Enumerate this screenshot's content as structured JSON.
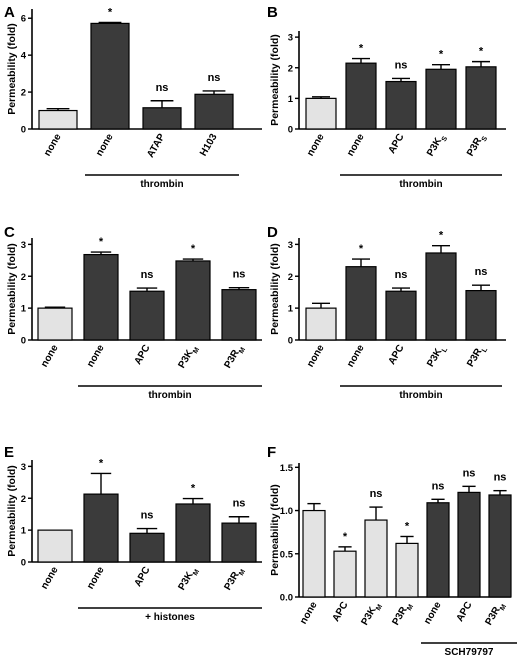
{
  "colors": {
    "light": "#e3e3e3",
    "dark": "#3b3b3b",
    "axis": "#000000"
  },
  "chart_data": [
    {
      "id": "A",
      "type": "bar",
      "ylabel": "Permeability (fold)",
      "ylim": [
        0,
        6.5
      ],
      "yticks": [
        "0",
        "2",
        "4",
        "6"
      ],
      "categories": [
        "none",
        "none",
        "ATAP",
        "H103"
      ],
      "values": [
        1.0,
        5.72,
        1.15,
        1.88
      ],
      "errors": [
        0.1,
        0.05,
        0.38,
        0.18
      ],
      "fills": [
        "light",
        "dark",
        "dark",
        "dark"
      ],
      "significance": [
        "",
        "*",
        "ns",
        "ns"
      ],
      "group_label": "thrombin",
      "group_range": [
        1,
        3
      ]
    },
    {
      "id": "B",
      "type": "bar",
      "ylabel": "Permeability (fold)",
      "ylim": [
        0,
        3.2
      ],
      "yticks": [
        "0",
        "1",
        "2",
        "3"
      ],
      "categories": [
        "none",
        "none",
        "APC",
        "P3K_S",
        "P3R_S"
      ],
      "values": [
        1.0,
        2.15,
        1.55,
        1.95,
        2.03
      ],
      "errors": [
        0.05,
        0.15,
        0.1,
        0.15,
        0.17
      ],
      "fills": [
        "light",
        "dark",
        "dark",
        "dark",
        "dark"
      ],
      "significance": [
        "",
        "*",
        "ns",
        "*",
        "*"
      ],
      "group_label": "thrombin",
      "group_range": [
        1,
        4
      ]
    },
    {
      "id": "C",
      "type": "bar",
      "ylabel": "Permeability (fold)",
      "ylim": [
        0,
        3.2
      ],
      "yticks": [
        "0",
        "1",
        "2",
        "3"
      ],
      "categories": [
        "none",
        "none",
        "APC",
        "P3K_M",
        "P3R_M"
      ],
      "values": [
        1.0,
        2.68,
        1.53,
        2.48,
        1.58
      ],
      "errors": [
        0.03,
        0.08,
        0.1,
        0.06,
        0.06
      ],
      "fills": [
        "light",
        "dark",
        "dark",
        "dark",
        "dark"
      ],
      "significance": [
        "",
        "*",
        "ns",
        "*",
        "ns"
      ],
      "group_label": "thrombin",
      "group_range": [
        1,
        4
      ]
    },
    {
      "id": "D",
      "type": "bar",
      "ylabel": "Permeability (fold)",
      "ylim": [
        0,
        3.2
      ],
      "yticks": [
        "0",
        "1",
        "2",
        "3"
      ],
      "categories": [
        "none",
        "none",
        "APC",
        "P3K_L",
        "P3R_L"
      ],
      "values": [
        1.0,
        2.3,
        1.53,
        2.73,
        1.55
      ],
      "errors": [
        0.15,
        0.24,
        0.1,
        0.23,
        0.17
      ],
      "fills": [
        "light",
        "dark",
        "dark",
        "dark",
        "dark"
      ],
      "significance": [
        "",
        "*",
        "ns",
        "*",
        "ns"
      ],
      "group_label": "thrombin",
      "group_range": [
        1,
        4
      ]
    },
    {
      "id": "E",
      "type": "bar",
      "ylabel": "Permeability (fold)",
      "ylim": [
        0,
        3.2
      ],
      "yticks": [
        "0",
        "1",
        "2",
        "3"
      ],
      "categories": [
        "none",
        "none",
        "APC",
        "P3K_M",
        "P3R_M"
      ],
      "values": [
        1.0,
        2.13,
        0.9,
        1.82,
        1.22
      ],
      "errors": [
        0.0,
        0.65,
        0.15,
        0.17,
        0.2
      ],
      "fills": [
        "light",
        "dark",
        "dark",
        "dark",
        "dark"
      ],
      "significance": [
        "",
        "*",
        "ns",
        "*",
        "ns"
      ],
      "group_label": "+ histones",
      "group_range": [
        1,
        4
      ]
    },
    {
      "id": "F",
      "type": "bar",
      "ylabel": "Permeability (fold)",
      "ylim": [
        0,
        1.55
      ],
      "yticks": [
        "0.0",
        "0.5",
        "1.0",
        "1.5"
      ],
      "categories": [
        "none",
        "APC",
        "P3K_M",
        "P3R_M",
        "none",
        "APC",
        "P3R_M"
      ],
      "values": [
        1.0,
        0.53,
        0.89,
        0.62,
        1.09,
        1.21,
        1.18
      ],
      "errors": [
        0.08,
        0.05,
        0.15,
        0.08,
        0.04,
        0.07,
        0.05
      ],
      "fills": [
        "light",
        "light",
        "light",
        "light",
        "dark",
        "dark",
        "dark"
      ],
      "significance": [
        "",
        "*",
        "ns",
        "*",
        "ns",
        "ns",
        "ns"
      ],
      "group_label": "SCH79797",
      "group_range": [
        4,
        6
      ]
    }
  ]
}
